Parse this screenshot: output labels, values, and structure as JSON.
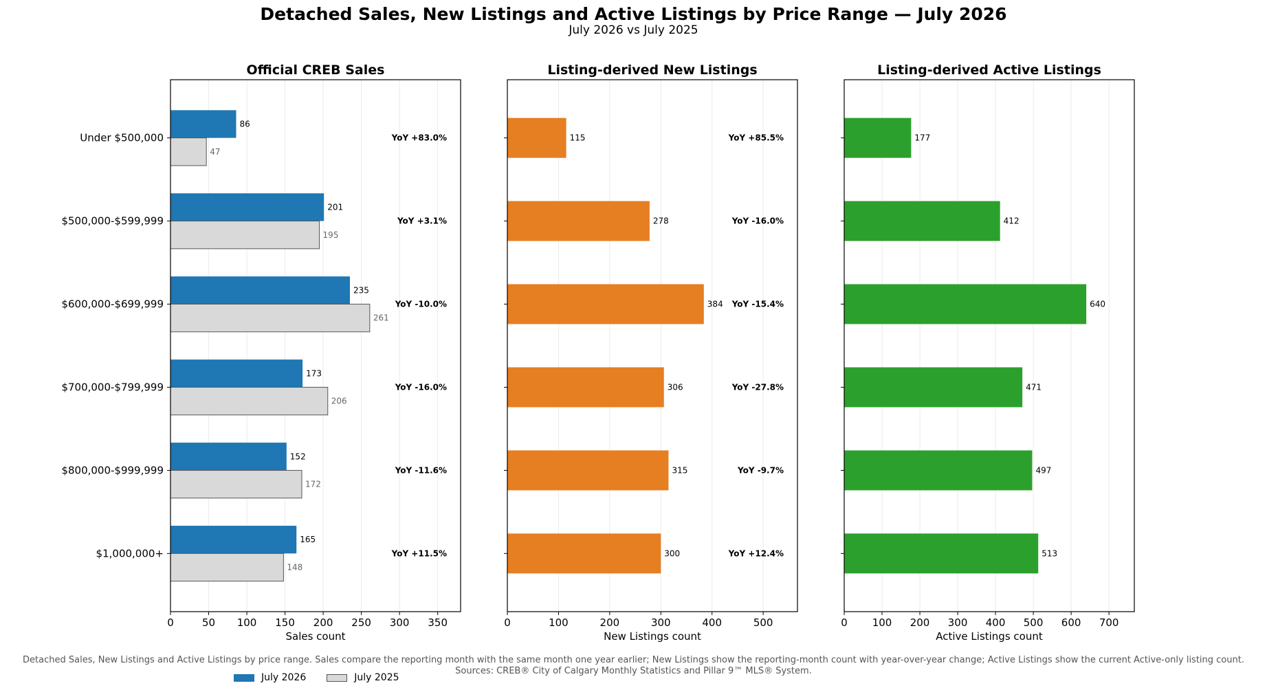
{
  "title": "Detached Sales, New Listings and Active Listings by Price Range — July 2026",
  "subtitle": "July 2026 vs July 2025",
  "footnote": {
    "line1": "Detached Sales, New Listings and Active Listings by price range. Sales compare the reporting month with the same month one year earlier; New Listings show the reporting-month count with year-over-year change; Active Listings show the current Active-only listing count.",
    "line2": "Sources: CREB® City of Calgary Monthly Statistics and Pillar 9™ MLS® System."
  },
  "legend": [
    {
      "label": "July 2026",
      "color": "#1f77b4"
    },
    {
      "label": "July 2025",
      "color": "#d9d9d9"
    }
  ],
  "chart_data": [
    {
      "type": "bar",
      "orientation": "horizontal",
      "title": "Official CREB Sales",
      "xlabel": "Sales count",
      "categories": [
        "Under $500,000",
        "$500,000-$599,999",
        "$600,000-$699,999",
        "$700,000-$799,999",
        "$800,000-$999,999",
        "$1,000,000+"
      ],
      "series": [
        {
          "name": "July 2026",
          "values": [
            86,
            201,
            235,
            173,
            152,
            165
          ],
          "color": "#1f77b4"
        },
        {
          "name": "July 2025",
          "values": [
            47,
            195,
            261,
            206,
            172,
            148
          ],
          "color": "#d9d9d9"
        }
      ],
      "yoy": [
        "YoY +83.0%",
        "YoY +3.1%",
        "YoY -10.0%",
        "YoY -16.0%",
        "YoY -11.6%",
        "YoY +11.5%"
      ],
      "xlim": [
        0,
        380
      ],
      "xticks": [
        0,
        50,
        100,
        150,
        200,
        250,
        300,
        350
      ],
      "grid": "vertical"
    },
    {
      "type": "bar",
      "orientation": "horizontal",
      "title": "Listing-derived New Listings",
      "xlabel": "New Listings count",
      "categories": [
        "Under $500,000",
        "$500,000-$599,999",
        "$600,000-$699,999",
        "$700,000-$799,999",
        "$800,000-$999,999",
        "$1,000,000+"
      ],
      "series": [
        {
          "values": [
            115,
            278,
            384,
            306,
            315,
            300
          ],
          "color": "#e67e22"
        }
      ],
      "yoy": [
        "YoY +85.5%",
        "YoY -16.0%",
        "YoY -15.4%",
        "YoY -27.8%",
        "YoY -9.7%",
        "YoY +12.4%"
      ],
      "xlim": [
        0,
        567
      ],
      "xticks": [
        0,
        100,
        200,
        300,
        400,
        500
      ],
      "grid": "vertical"
    },
    {
      "type": "bar",
      "orientation": "horizontal",
      "title": "Listing-derived Active Listings",
      "xlabel": "Active Listings count",
      "categories": [
        "Under $500,000",
        "$500,000-$599,999",
        "$600,000-$699,999",
        "$700,000-$799,999",
        "$800,000-$999,999",
        "$1,000,000+"
      ],
      "series": [
        {
          "values": [
            177,
            412,
            640,
            471,
            497,
            513
          ],
          "color": "#2ca02c"
        }
      ],
      "xlim": [
        0,
        767
      ],
      "xticks": [
        0,
        100,
        200,
        300,
        400,
        500,
        600,
        700
      ],
      "grid": "vertical"
    }
  ]
}
